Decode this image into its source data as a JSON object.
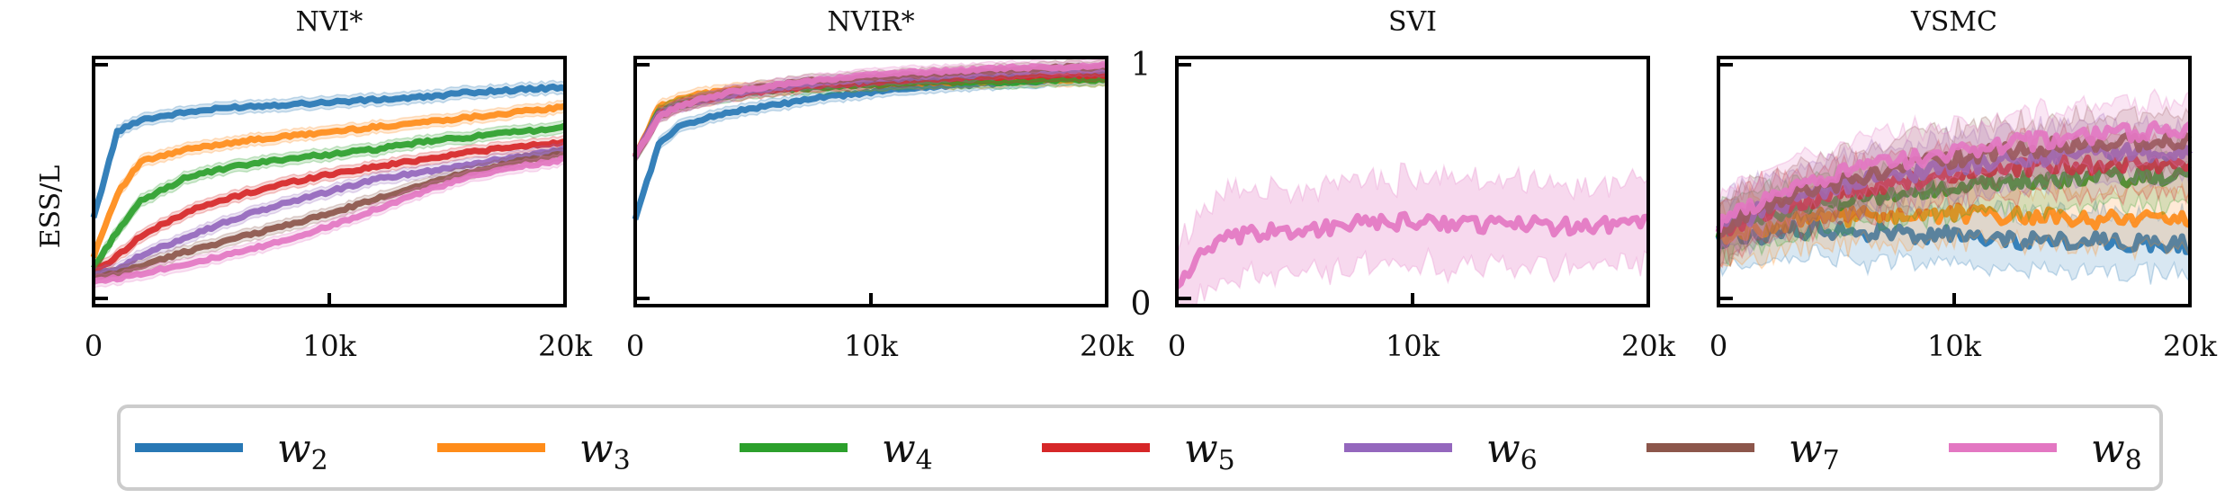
{
  "ylabel": "ESS/L",
  "x_tick_labels": [
    "0",
    "10k",
    "20k"
  ],
  "y_tick_labels": [
    "0",
    "1"
  ],
  "colors": {
    "w2": "#2878b5",
    "w3": "#ff8c1a",
    "w4": "#2ca02c",
    "w5": "#d62728",
    "w6": "#9467bd",
    "w7": "#8c564b",
    "w8": "#e377c2"
  },
  "legend": [
    {
      "key": "w2",
      "label": "w",
      "sub": "2"
    },
    {
      "key": "w3",
      "label": "w",
      "sub": "3"
    },
    {
      "key": "w4",
      "label": "w",
      "sub": "4"
    },
    {
      "key": "w5",
      "label": "w",
      "sub": "5"
    },
    {
      "key": "w6",
      "label": "w",
      "sub": "6"
    },
    {
      "key": "w7",
      "label": "w",
      "sub": "7"
    },
    {
      "key": "w8",
      "label": "w",
      "sub": "8"
    }
  ],
  "chart_data": [
    {
      "type": "line",
      "title": "NVI*",
      "xlim": [
        0,
        20000
      ],
      "ylim": [
        0,
        1
      ],
      "x": [
        0,
        1000,
        2000,
        4000,
        6000,
        8000,
        10000,
        12000,
        14000,
        16000,
        18000,
        20000
      ],
      "series": [
        {
          "key": "w2",
          "name": "w2",
          "values": [
            0.35,
            0.7,
            0.75,
            0.78,
            0.8,
            0.81,
            0.82,
            0.83,
            0.84,
            0.86,
            0.87,
            0.88
          ]
        },
        {
          "key": "w3",
          "name": "w3",
          "values": [
            0.2,
            0.45,
            0.58,
            0.63,
            0.66,
            0.68,
            0.7,
            0.72,
            0.74,
            0.76,
            0.78,
            0.8
          ]
        },
        {
          "key": "w4",
          "name": "w4",
          "values": [
            0.15,
            0.3,
            0.42,
            0.52,
            0.56,
            0.59,
            0.61,
            0.63,
            0.66,
            0.68,
            0.7,
            0.72
          ]
        },
        {
          "key": "w5",
          "name": "w5",
          "values": [
            0.13,
            0.2,
            0.28,
            0.38,
            0.44,
            0.49,
            0.53,
            0.56,
            0.59,
            0.62,
            0.64,
            0.66
          ]
        },
        {
          "key": "w6",
          "name": "w6",
          "values": [
            0.12,
            0.15,
            0.2,
            0.28,
            0.35,
            0.41,
            0.46,
            0.51,
            0.54,
            0.57,
            0.6,
            0.63
          ]
        },
        {
          "key": "w7",
          "name": "w7",
          "values": [
            0.11,
            0.13,
            0.16,
            0.22,
            0.27,
            0.32,
            0.37,
            0.43,
            0.49,
            0.54,
            0.58,
            0.61
          ]
        },
        {
          "key": "w8",
          "name": "w8",
          "values": [
            0.1,
            0.11,
            0.13,
            0.17,
            0.21,
            0.26,
            0.32,
            0.39,
            0.46,
            0.52,
            0.56,
            0.59
          ]
        }
      ]
    },
    {
      "type": "line",
      "title": "NVIR*",
      "xlim": [
        0,
        20000
      ],
      "ylim": [
        0,
        1
      ],
      "x": [
        0,
        1000,
        2000,
        4000,
        6000,
        8000,
        10000,
        12000,
        14000,
        16000,
        18000,
        20000
      ],
      "series": [
        {
          "key": "w2",
          "name": "w2",
          "values": [
            0.35,
            0.65,
            0.73,
            0.78,
            0.81,
            0.84,
            0.86,
            0.88,
            0.89,
            0.9,
            0.91,
            0.92
          ]
        },
        {
          "key": "w3",
          "name": "w3",
          "values": [
            0.6,
            0.8,
            0.84,
            0.87,
            0.88,
            0.89,
            0.89,
            0.9,
            0.9,
            0.91,
            0.91,
            0.91
          ]
        },
        {
          "key": "w4",
          "name": "w4",
          "values": [
            0.6,
            0.78,
            0.82,
            0.85,
            0.87,
            0.88,
            0.89,
            0.9,
            0.9,
            0.9,
            0.91,
            0.91
          ]
        },
        {
          "key": "w5",
          "name": "w5",
          "values": [
            0.6,
            0.77,
            0.81,
            0.85,
            0.87,
            0.89,
            0.9,
            0.91,
            0.92,
            0.92,
            0.93,
            0.93
          ]
        },
        {
          "key": "w6",
          "name": "w6",
          "values": [
            0.6,
            0.77,
            0.81,
            0.85,
            0.88,
            0.9,
            0.91,
            0.92,
            0.93,
            0.94,
            0.95,
            0.95
          ]
        },
        {
          "key": "w7",
          "name": "w7",
          "values": [
            0.6,
            0.76,
            0.81,
            0.86,
            0.89,
            0.91,
            0.92,
            0.93,
            0.94,
            0.95,
            0.96,
            0.96
          ]
        },
        {
          "key": "w8",
          "name": "w8",
          "values": [
            0.6,
            0.76,
            0.81,
            0.86,
            0.89,
            0.91,
            0.93,
            0.94,
            0.95,
            0.96,
            0.96,
            0.97
          ]
        }
      ]
    },
    {
      "type": "line",
      "title": "SVI",
      "xlim": [
        0,
        20000
      ],
      "ylim": [
        0,
        1
      ],
      "x": [
        0,
        1000,
        2000,
        4000,
        6000,
        8000,
        10000,
        12000,
        14000,
        16000,
        18000,
        20000
      ],
      "series": [
        {
          "key": "w8",
          "name": "w8",
          "values": [
            0.08,
            0.2,
            0.26,
            0.3,
            0.31,
            0.33,
            0.34,
            0.33,
            0.33,
            0.32,
            0.33,
            0.34
          ]
        }
      ]
    },
    {
      "type": "line",
      "title": "VSMC",
      "xlim": [
        0,
        20000
      ],
      "ylim": [
        0,
        1
      ],
      "x": [
        0,
        1000,
        2000,
        4000,
        6000,
        8000,
        10000,
        12000,
        14000,
        16000,
        18000,
        20000
      ],
      "series": [
        {
          "key": "w2",
          "name": "w2",
          "values": [
            0.27,
            0.28,
            0.29,
            0.31,
            0.3,
            0.29,
            0.28,
            0.27,
            0.26,
            0.26,
            0.25,
            0.25
          ]
        },
        {
          "key": "w3",
          "name": "w3",
          "values": [
            0.28,
            0.3,
            0.32,
            0.35,
            0.36,
            0.36,
            0.37,
            0.36,
            0.36,
            0.35,
            0.35,
            0.35
          ]
        },
        {
          "key": "w4",
          "name": "w4",
          "values": [
            0.3,
            0.33,
            0.36,
            0.4,
            0.43,
            0.46,
            0.48,
            0.5,
            0.51,
            0.52,
            0.52,
            0.52
          ]
        },
        {
          "key": "w5",
          "name": "w5",
          "values": [
            0.3,
            0.34,
            0.38,
            0.43,
            0.47,
            0.5,
            0.53,
            0.55,
            0.56,
            0.57,
            0.57,
            0.58
          ]
        },
        {
          "key": "w6",
          "name": "w6",
          "values": [
            0.31,
            0.35,
            0.39,
            0.45,
            0.5,
            0.53,
            0.56,
            0.58,
            0.6,
            0.61,
            0.62,
            0.62
          ]
        },
        {
          "key": "w7",
          "name": "w7",
          "values": [
            0.31,
            0.36,
            0.4,
            0.47,
            0.52,
            0.56,
            0.59,
            0.62,
            0.64,
            0.65,
            0.66,
            0.66
          ]
        },
        {
          "key": "w8",
          "name": "w8",
          "values": [
            0.32,
            0.38,
            0.43,
            0.5,
            0.55,
            0.59,
            0.62,
            0.65,
            0.67,
            0.69,
            0.7,
            0.71
          ]
        }
      ]
    }
  ]
}
